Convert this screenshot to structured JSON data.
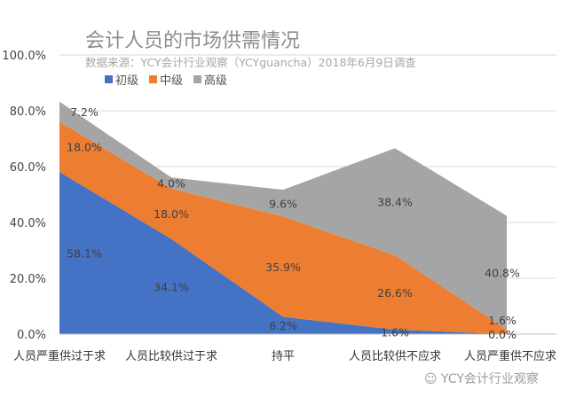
{
  "chart_data": {
    "type": "area",
    "stacked": true,
    "title": "会计人员的市场供需情况",
    "subtitle": "数据来源：YCY会计行业观察（YCYguancha）2018年6月9日调查",
    "categories": [
      "人员严重供过于求",
      "人员比较供过于求",
      "持平",
      "人员比较供不应求",
      "人员严重供不应求"
    ],
    "series": [
      {
        "name": "初级",
        "color": "#4472c4",
        "values": [
          58.1,
          34.1,
          6.2,
          1.6,
          0.0
        ],
        "labels": [
          "58.1%",
          "34.1%",
          "6.2%",
          "1.6%",
          "0.0%"
        ]
      },
      {
        "name": "中级",
        "color": "#ed7d31",
        "values": [
          18.0,
          18.0,
          35.9,
          26.6,
          1.6
        ],
        "labels": [
          "18.0%",
          "18.0%",
          "35.9%",
          "26.6%",
          "1.6%"
        ]
      },
      {
        "name": "高级",
        "color": "#a5a5a5",
        "values": [
          7.2,
          4.0,
          9.6,
          38.4,
          40.8
        ],
        "labels": [
          "7.2%",
          "4.0%",
          "9.6%",
          "38.4%",
          "40.8%"
        ]
      }
    ],
    "yticks": [
      "0.0%",
      "20.0%",
      "40.0%",
      "60.0%",
      "80.0%",
      "100.0%"
    ],
    "ylim": [
      0,
      100
    ],
    "grid": true,
    "legend": "top-left"
  },
  "watermark": "YCY会计行业观察"
}
